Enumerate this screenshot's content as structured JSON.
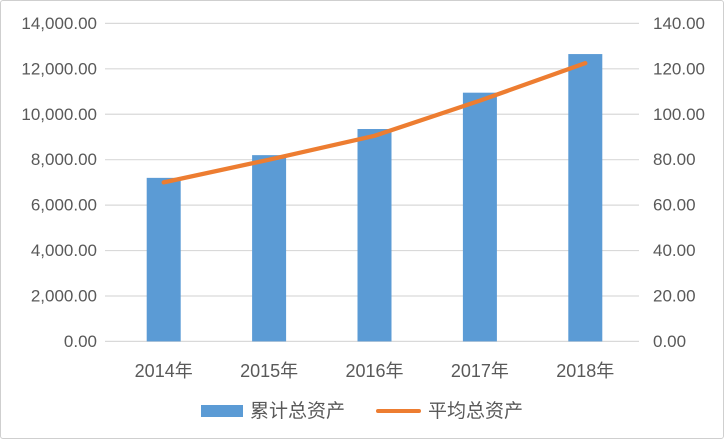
{
  "chart_data": {
    "type": "bar",
    "combo": "bar+line dual axis",
    "title": "",
    "categories": [
      "2014年",
      "2015年",
      "2016年",
      "2017年",
      "2018年"
    ],
    "series": [
      {
        "name": "累计总资产",
        "type": "bar",
        "axis": "left",
        "color": "#5B9BD5",
        "values": [
          7200,
          8200,
          9350,
          10950,
          12650
        ]
      },
      {
        "name": "平均总资产",
        "type": "line",
        "axis": "right",
        "color": "#ED7D31",
        "values": [
          70,
          80,
          90.5,
          106,
          122.5
        ]
      }
    ],
    "left_axis": {
      "min": 0,
      "max": 14000,
      "step": 2000,
      "tick_labels": [
        "0.00",
        "2,000.00",
        "4,000.00",
        "6,000.00",
        "8,000.00",
        "10,000.00",
        "12,000.00",
        "14,000.00"
      ]
    },
    "right_axis": {
      "min": 0,
      "max": 140,
      "step": 20,
      "tick_labels": [
        "0.00",
        "20.00",
        "40.00",
        "60.00",
        "80.00",
        "100.00",
        "120.00",
        "140.00"
      ]
    },
    "grid": true,
    "legend_position": "bottom"
  },
  "styles": {
    "text_color": "#595959",
    "gridline_color": "#D9D9D9",
    "background": "#FFFFFF",
    "border_color": "#CFCFCF",
    "bar_color": "#5B9BD5",
    "line_color": "#ED7D31"
  }
}
